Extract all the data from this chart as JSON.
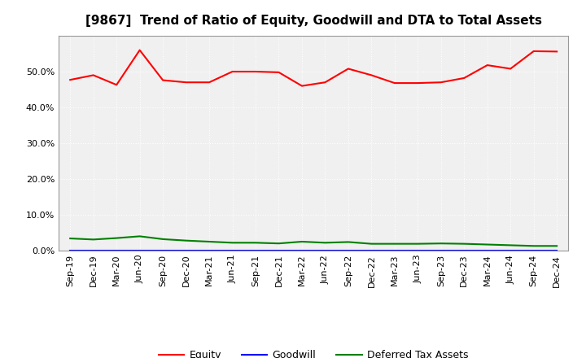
{
  "title": "[9867]  Trend of Ratio of Equity, Goodwill and DTA to Total Assets",
  "x_labels": [
    "Sep-19",
    "Dec-19",
    "Mar-20",
    "Jun-20",
    "Sep-20",
    "Dec-20",
    "Mar-21",
    "Jun-21",
    "Sep-21",
    "Dec-21",
    "Mar-22",
    "Jun-22",
    "Sep-22",
    "Dec-22",
    "Mar-23",
    "Jun-23",
    "Sep-23",
    "Dec-23",
    "Mar-24",
    "Jun-24",
    "Sep-24",
    "Dec-24"
  ],
  "equity": [
    0.477,
    0.49,
    0.463,
    0.56,
    0.476,
    0.47,
    0.47,
    0.5,
    0.5,
    0.498,
    0.46,
    0.47,
    0.508,
    0.49,
    0.468,
    0.468,
    0.47,
    0.482,
    0.518,
    0.508,
    0.557,
    0.556
  ],
  "goodwill": [
    0.0,
    0.0,
    0.0,
    0.0,
    0.0,
    0.0,
    0.0,
    0.0,
    0.0,
    0.0,
    0.0,
    0.0,
    0.0,
    0.0,
    0.0,
    0.0,
    0.0,
    0.0,
    0.0,
    0.0,
    0.0,
    0.0
  ],
  "dta": [
    0.034,
    0.031,
    0.035,
    0.04,
    0.032,
    0.028,
    0.025,
    0.022,
    0.022,
    0.02,
    0.025,
    0.022,
    0.024,
    0.019,
    0.019,
    0.019,
    0.02,
    0.019,
    0.017,
    0.015,
    0.013,
    0.013
  ],
  "equity_color": "#FF0000",
  "goodwill_color": "#0000FF",
  "dta_color": "#008000",
  "background_color": "#FFFFFF",
  "plot_bg_color": "#F0F0F0",
  "grid_color": "#FFFFFF",
  "ylim": [
    0.0,
    0.6
  ],
  "yticks": [
    0.0,
    0.1,
    0.2,
    0.3,
    0.4,
    0.5
  ],
  "legend_labels": [
    "Equity",
    "Goodwill",
    "Deferred Tax Assets"
  ],
  "title_fontsize": 11,
  "tick_fontsize": 8,
  "legend_fontsize": 9
}
